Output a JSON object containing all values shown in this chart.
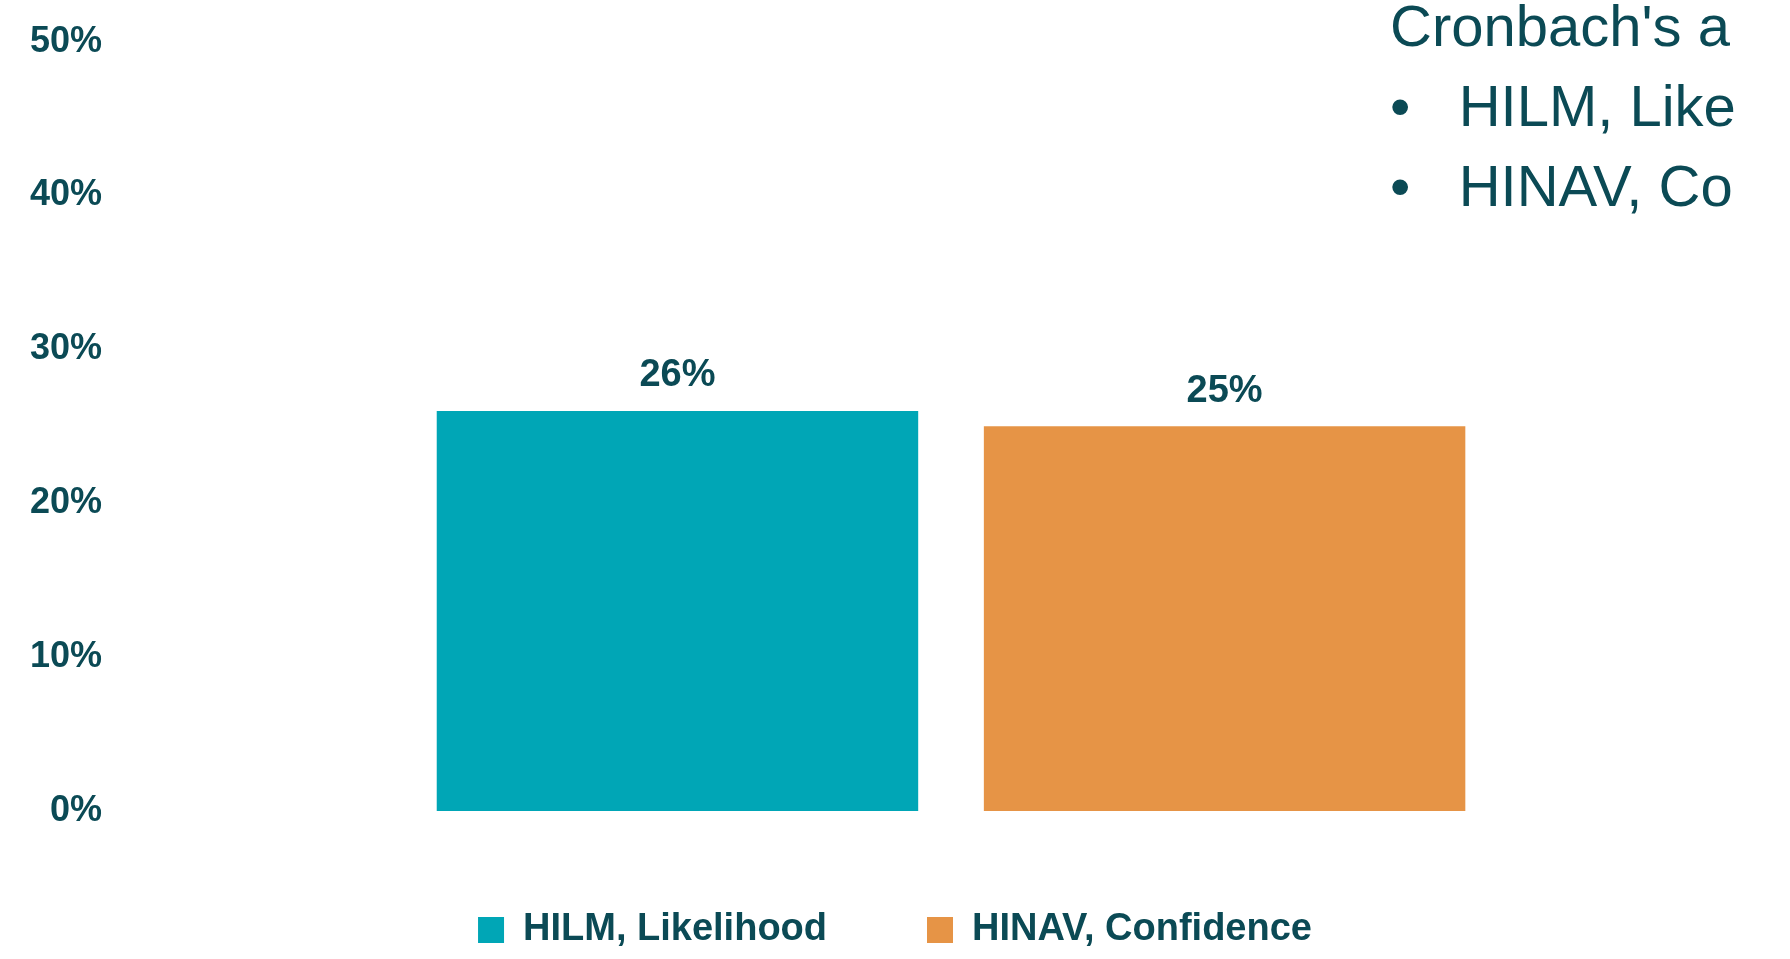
{
  "chart_data": {
    "type": "bar",
    "categories": [
      null
    ],
    "series": [
      {
        "name": "HILM, Likelihood",
        "color": "#00a6b6",
        "values": [
          26
        ],
        "value_labels": [
          "26%"
        ]
      },
      {
        "name": "HINAV, Confidence",
        "color": "#e69446",
        "values": [
          25
        ],
        "value_labels": [
          "25%"
        ]
      }
    ],
    "ylim": [
      0,
      50
    ],
    "yticks": [
      {
        "value": 0,
        "label": "0%"
      },
      {
        "value": 10,
        "label": "10%"
      },
      {
        "value": 20,
        "label": "20%"
      },
      {
        "value": 30,
        "label": "30%"
      },
      {
        "value": 40,
        "label": "40%"
      },
      {
        "value": 50,
        "label": "50%"
      }
    ],
    "legend": "bottom",
    "grid": false,
    "annotations": [
      "Cronbach's a",
      "•   HILM, Like",
      "•   HINAV, Co"
    ]
  }
}
